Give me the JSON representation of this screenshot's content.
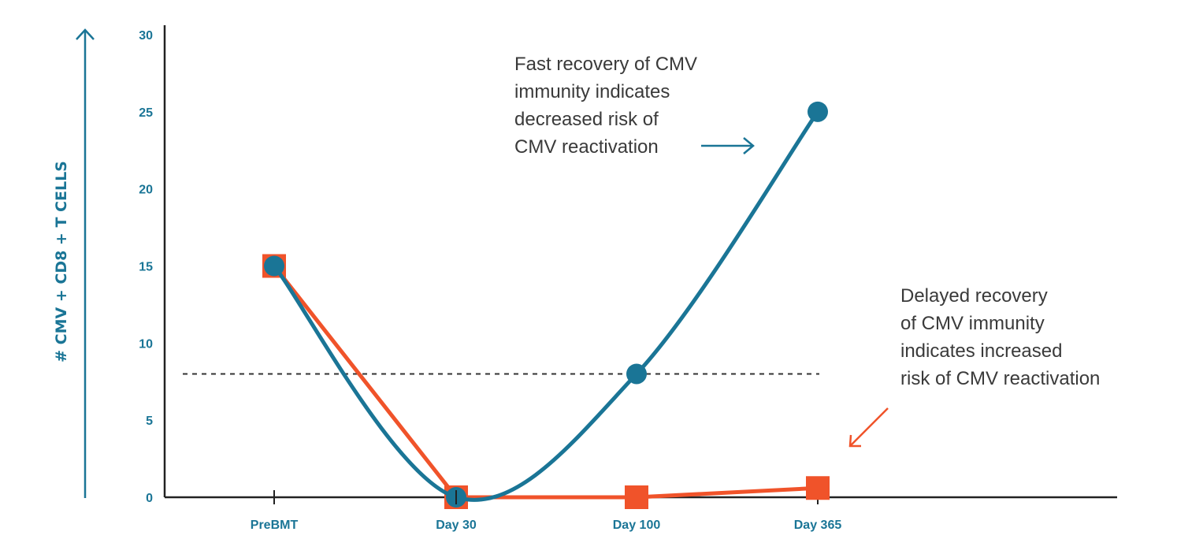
{
  "chart_data": {
    "type": "line",
    "categories": [
      "PreBMT",
      "Day 30",
      "Day 100",
      "Day 365"
    ],
    "ylabel": "# CMV + CD8 + T CELLS",
    "ylim": [
      0,
      30
    ],
    "y_ticks": [
      "0",
      "5",
      "10",
      "15",
      "20",
      "25",
      "30"
    ],
    "threshold": 8,
    "series": [
      {
        "color": "#1a7596",
        "marker": "circle",
        "values": [
          15,
          0,
          8,
          25
        ]
      },
      {
        "color": "#f0532a",
        "marker": "square",
        "values": [
          15,
          0,
          0,
          0.6
        ]
      }
    ],
    "annotations": {
      "fast": [
        "Fast recovery of CMV",
        "immunity indicates",
        "decreased risk of",
        "CMV reactivation"
      ],
      "delayed": [
        "Delayed recovery",
        "of CMV immunity",
        "indicates increased",
        "risk of CMV reactivation"
      ]
    },
    "colors": {
      "axis_text": "#1a7596",
      "axis_line": "#222222",
      "threshold_line": "#333333"
    }
  }
}
